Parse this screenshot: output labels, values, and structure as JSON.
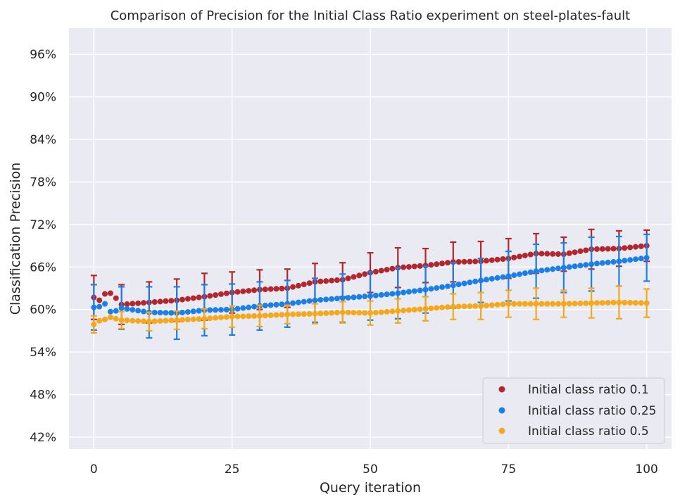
{
  "chart_data": {
    "type": "scatter",
    "title": "Comparison of Precision for the Initial Class Ratio experiment on steel-plates-fault",
    "xlabel": "Query iteration",
    "ylabel": "Classification Precision",
    "xlim": [
      -4.5,
      104.5
    ],
    "ylim": [
      40.3,
      99.7
    ],
    "x_ticks": [
      0,
      25,
      50,
      75,
      100
    ],
    "x_tick_labels": [
      "0",
      "25",
      "50",
      "75",
      "100"
    ],
    "y_ticks": [
      42,
      48,
      54,
      60,
      66,
      72,
      78,
      84,
      90,
      96
    ],
    "y_tick_labels": [
      "42%",
      "48%",
      "54%",
      "60%",
      "66%",
      "72%",
      "78%",
      "84%",
      "90%",
      "96%"
    ],
    "grid": true,
    "legend_position": "lower-right",
    "errorbar_every": 5,
    "series": [
      {
        "name": "Initial class ratio 0.1",
        "color": "#b2272d",
        "points": [
          [
            0,
            61.7
          ],
          [
            1,
            61.3
          ],
          [
            2,
            62.2
          ],
          [
            3,
            62.3
          ],
          [
            4,
            61.6
          ],
          [
            5,
            60.7
          ],
          [
            10,
            61.0
          ],
          [
            15,
            61.3
          ],
          [
            20,
            61.8
          ],
          [
            25,
            62.4
          ],
          [
            30,
            62.8
          ],
          [
            35,
            63.0
          ],
          [
            40,
            63.9
          ],
          [
            45,
            64.2
          ],
          [
            50,
            65.2
          ],
          [
            55,
            65.9
          ],
          [
            60,
            66.2
          ],
          [
            65,
            66.7
          ],
          [
            70,
            66.8
          ],
          [
            75,
            67.2
          ],
          [
            80,
            67.9
          ],
          [
            85,
            67.8
          ],
          [
            90,
            68.5
          ],
          [
            95,
            68.6
          ],
          [
            100,
            69.0
          ]
        ],
        "error": [
          [
            0,
            3.1
          ],
          [
            5,
            2.8
          ],
          [
            10,
            2.9
          ],
          [
            15,
            3.0
          ],
          [
            20,
            3.3
          ],
          [
            25,
            2.9
          ],
          [
            30,
            2.8
          ],
          [
            35,
            2.7
          ],
          [
            40,
            2.6
          ],
          [
            45,
            2.4
          ],
          [
            50,
            2.8
          ],
          [
            55,
            2.8
          ],
          [
            60,
            2.4
          ],
          [
            65,
            2.8
          ],
          [
            70,
            2.8
          ],
          [
            75,
            2.8
          ],
          [
            80,
            2.8
          ],
          [
            85,
            2.4
          ],
          [
            90,
            2.8
          ],
          [
            95,
            2.5
          ],
          [
            100,
            2.2
          ]
        ]
      },
      {
        "name": "Initial class ratio 0.25",
        "color": "#1a80e8",
        "points": [
          [
            0,
            60.3
          ],
          [
            1,
            60.4
          ],
          [
            2,
            60.8
          ],
          [
            3,
            59.7
          ],
          [
            4,
            59.8
          ],
          [
            5,
            60.2
          ],
          [
            10,
            59.6
          ],
          [
            15,
            59.5
          ],
          [
            20,
            59.9
          ],
          [
            25,
            60.0
          ],
          [
            30,
            60.5
          ],
          [
            35,
            60.8
          ],
          [
            40,
            61.3
          ],
          [
            45,
            61.6
          ],
          [
            50,
            61.9
          ],
          [
            55,
            62.3
          ],
          [
            60,
            62.8
          ],
          [
            65,
            63.4
          ],
          [
            70,
            64.1
          ],
          [
            75,
            64.7
          ],
          [
            80,
            65.4
          ],
          [
            85,
            65.9
          ],
          [
            90,
            66.4
          ],
          [
            95,
            66.8
          ],
          [
            100,
            67.3
          ]
        ],
        "error": [
          [
            0,
            3.2
          ],
          [
            5,
            3.0
          ],
          [
            10,
            3.6
          ],
          [
            15,
            3.7
          ],
          [
            20,
            3.6
          ],
          [
            25,
            3.6
          ],
          [
            30,
            3.4
          ],
          [
            35,
            3.3
          ],
          [
            40,
            3.1
          ],
          [
            45,
            3.4
          ],
          [
            50,
            3.4
          ],
          [
            55,
            3.6
          ],
          [
            60,
            3.3
          ],
          [
            65,
            3.2
          ],
          [
            70,
            3.1
          ],
          [
            75,
            3.5
          ],
          [
            80,
            3.8
          ],
          [
            85,
            3.5
          ],
          [
            90,
            3.8
          ],
          [
            95,
            3.5
          ],
          [
            100,
            3.3
          ]
        ]
      },
      {
        "name": "Initial class ratio 0.5",
        "color": "#f5a81c",
        "points": [
          [
            0,
            57.9
          ],
          [
            1,
            58.4
          ],
          [
            2,
            58.6
          ],
          [
            3,
            58.9
          ],
          [
            4,
            58.7
          ],
          [
            5,
            58.5
          ],
          [
            10,
            58.3
          ],
          [
            15,
            58.5
          ],
          [
            20,
            58.7
          ],
          [
            25,
            59.0
          ],
          [
            30,
            59.1
          ],
          [
            35,
            59.3
          ],
          [
            40,
            59.4
          ],
          [
            45,
            59.6
          ],
          [
            50,
            59.5
          ],
          [
            55,
            59.8
          ],
          [
            60,
            60.1
          ],
          [
            65,
            60.4
          ],
          [
            70,
            60.5
          ],
          [
            75,
            60.8
          ],
          [
            80,
            60.8
          ],
          [
            85,
            60.8
          ],
          [
            90,
            60.9
          ],
          [
            95,
            61.0
          ],
          [
            100,
            60.9
          ]
        ],
        "error": [
          [
            0,
            1.2
          ],
          [
            5,
            1.2
          ],
          [
            10,
            1.3
          ],
          [
            15,
            1.3
          ],
          [
            20,
            1.4
          ],
          [
            25,
            1.5
          ],
          [
            30,
            1.5
          ],
          [
            35,
            1.3
          ],
          [
            40,
            1.4
          ],
          [
            45,
            1.5
          ],
          [
            50,
            1.7
          ],
          [
            55,
            1.7
          ],
          [
            60,
            1.7
          ],
          [
            65,
            1.8
          ],
          [
            70,
            1.9
          ],
          [
            75,
            1.9
          ],
          [
            80,
            2.2
          ],
          [
            85,
            1.9
          ],
          [
            90,
            2.1
          ],
          [
            95,
            2.3
          ],
          [
            100,
            2.0
          ]
        ]
      }
    ]
  }
}
